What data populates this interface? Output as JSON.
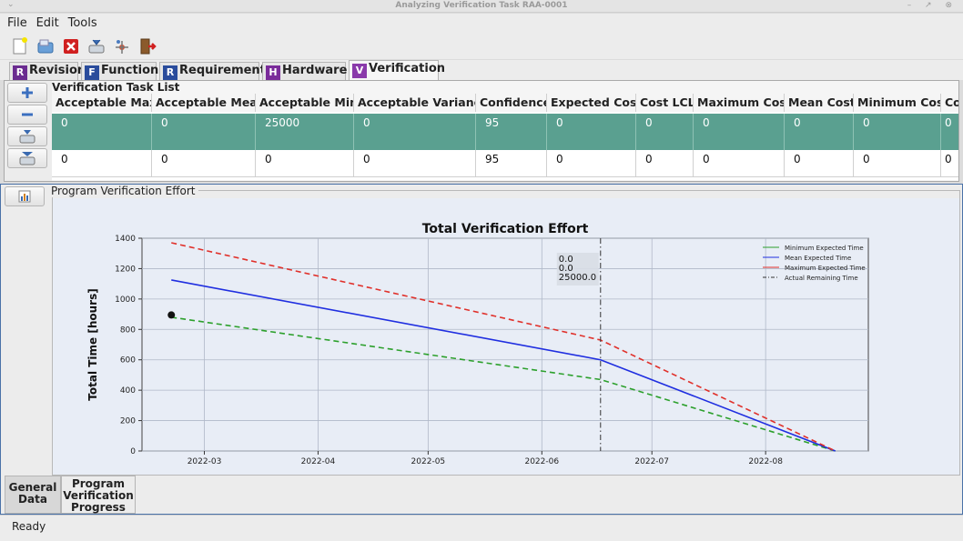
{
  "window": {
    "title": "Analyzing Verification Task RAA-0001"
  },
  "menu": {
    "file": "File",
    "edit": "Edit",
    "tools": "Tools"
  },
  "tabs": [
    {
      "letter": "R",
      "label": "Revision"
    },
    {
      "letter": "F",
      "label": "Function"
    },
    {
      "letter": "R",
      "label": "Requirement"
    },
    {
      "letter": "H",
      "label": "Hardware"
    },
    {
      "letter": "V",
      "label": "Verification"
    }
  ],
  "task_list": {
    "title": "Verification Task List",
    "columns": [
      "Acceptable Max.",
      "Acceptable Mean",
      "Acceptable Min.",
      "Acceptable Variance",
      "Confidence",
      "Expected Cost",
      "Cost LCL",
      "Maximum Cost",
      "Mean Cost",
      "Minimum Cost",
      "Cos"
    ],
    "rows": [
      [
        "0",
        "0",
        "25000",
        "0",
        "95",
        "0",
        "0",
        "0",
        "0",
        "0",
        "0"
      ],
      [
        "0",
        "0",
        "0",
        "0",
        "95",
        "0",
        "0",
        "0",
        "0",
        "0",
        "0"
      ]
    ]
  },
  "effort_panel": {
    "label": "Program Verification Effort"
  },
  "bottom_tabs": {
    "general": "General\nData",
    "progress": "Program\nVerification\nProgress"
  },
  "status": {
    "text": "Ready"
  },
  "chart_data": {
    "type": "line",
    "title": "Total Verification Effort",
    "xlabel": "",
    "ylabel": "Total Time [hours]",
    "ylim": [
      0,
      1400
    ],
    "xlim": [
      "2022-02-12",
      "2022-08-29"
    ],
    "xticks": [
      "2022-03",
      "2022-04",
      "2022-05",
      "2022-06",
      "2022-07",
      "2022-08"
    ],
    "yticks": [
      0,
      200,
      400,
      600,
      800,
      1000,
      1200,
      1400
    ],
    "grid": true,
    "legend_position": "top-right",
    "series": [
      {
        "name": "Minimum Expected Time",
        "color": "#2ca02c",
        "style": "dashed",
        "points": [
          [
            "2022-02-20",
            880
          ],
          [
            "2022-06-17",
            470
          ],
          [
            "2022-08-20",
            0
          ]
        ]
      },
      {
        "name": "Mean Expected Time",
        "color": "#1f2ee0",
        "style": "solid",
        "points": [
          [
            "2022-02-20",
            1125
          ],
          [
            "2022-06-17",
            600
          ],
          [
            "2022-08-20",
            0
          ]
        ]
      },
      {
        "name": "Maximum Expected Time",
        "color": "#e0302a",
        "style": "dashed",
        "points": [
          [
            "2022-02-20",
            1370
          ],
          [
            "2022-06-17",
            730
          ],
          [
            "2022-08-20",
            0
          ]
        ]
      },
      {
        "name": "Actual Remaining Time",
        "color": "#333333",
        "style": "dashdot",
        "vertical_at": "2022-06-17"
      }
    ],
    "marker": {
      "x": "2022-02-20",
      "y": 895
    },
    "annotation_lines": [
      "0.0",
      "0.0",
      "25000.0"
    ]
  }
}
